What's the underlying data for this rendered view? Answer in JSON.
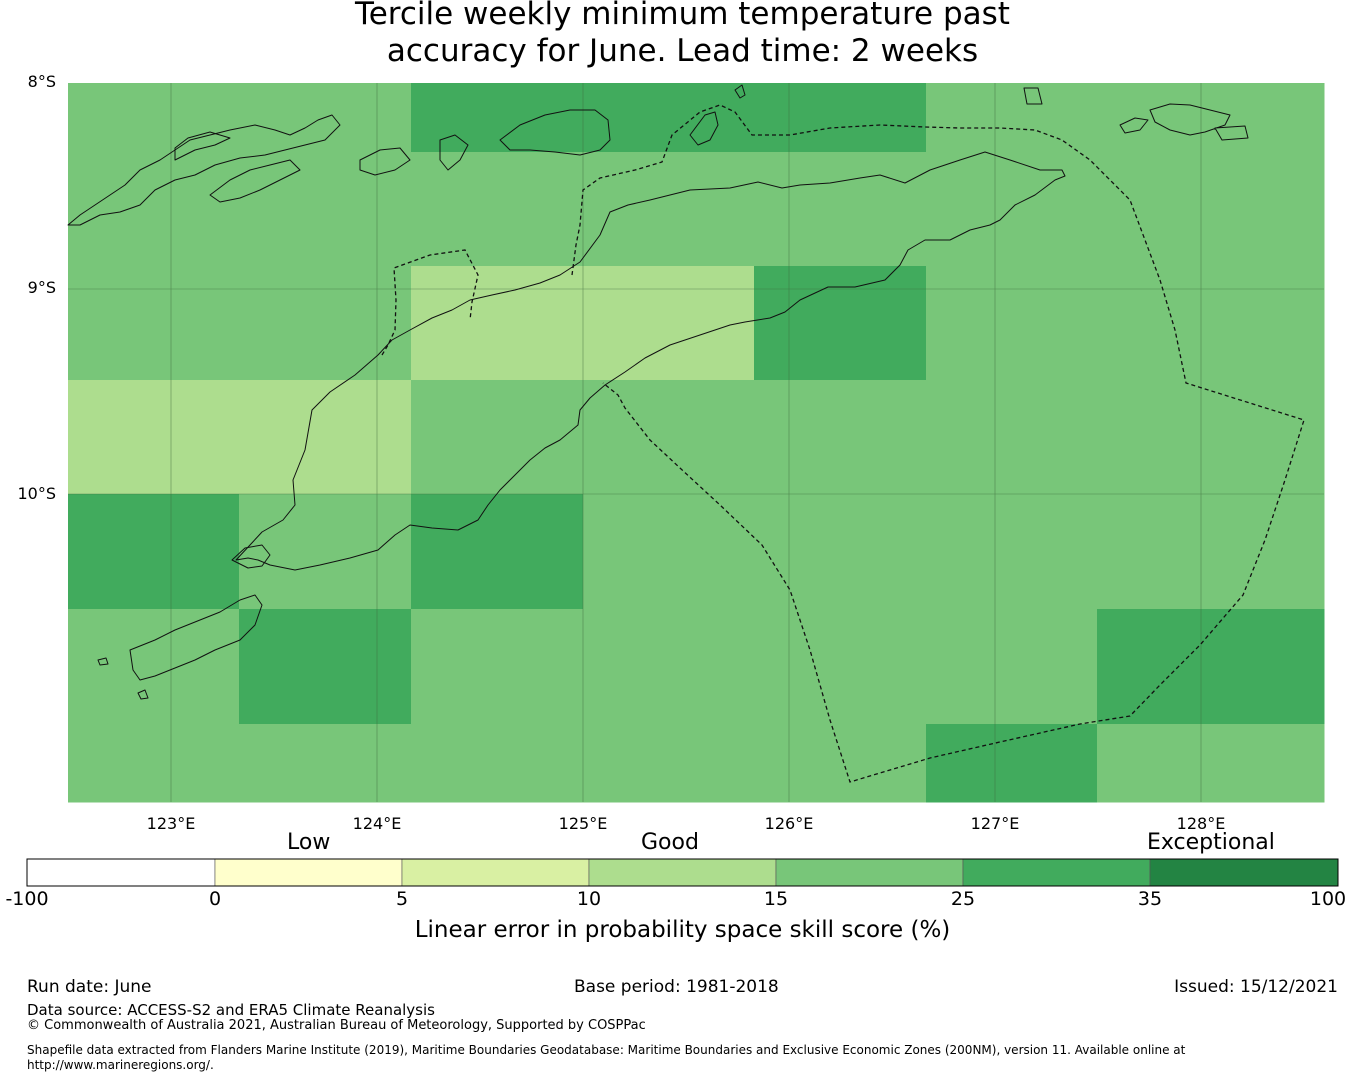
{
  "title_line1": "Tercile weekly minimum temperature past",
  "title_line2": "accuracy for June. Lead time: 2 weeks",
  "map": {
    "lon_labels": [
      "123°E",
      "124°E",
      "125°E",
      "126°E",
      "127°E",
      "128°E"
    ],
    "lat_labels": [
      "8°S",
      "9°S",
      "10°S"
    ],
    "grid_columns_skill_category": [
      [
        "15-25",
        "15-25",
        "15-25",
        "10-15",
        "25-35",
        "15-25",
        "15-25"
      ],
      [
        "15-25",
        "15-25",
        "15-25",
        "10-15",
        "15-25",
        "25-35",
        "15-25"
      ],
      [
        "25-35",
        "15-25",
        "10-15",
        "15-25",
        "25-35",
        "15-25",
        "15-25"
      ],
      [
        "25-35",
        "15-25",
        "10-15",
        "15-25",
        "15-25",
        "15-25",
        "15-25"
      ],
      [
        "25-35",
        "15-25",
        "25-35",
        "15-25",
        "15-25",
        "15-25",
        "15-25"
      ],
      [
        "15-25",
        "15-25",
        "15-25",
        "15-25",
        "15-25",
        "15-25",
        "25-35"
      ],
      [
        "15-25",
        "15-25",
        "15-25",
        "15-25",
        "15-25",
        "25-35",
        "15-25"
      ]
    ]
  },
  "colorbar": {
    "category_labels": [
      "Low",
      "Good",
      "Exceptional"
    ],
    "ticks": [
      "-100",
      "0",
      "5",
      "10",
      "15",
      "25",
      "35",
      "100"
    ],
    "colors": [
      "#ffffff",
      "#ffffcc",
      "#d9f0a3",
      "#addd8e",
      "#78c679",
      "#41ab5d",
      "#238443"
    ],
    "title": "Linear error in probability space skill score (%)"
  },
  "footer": {
    "run_date": "Run date: June",
    "base_period": "Base period: 1981-2018",
    "issued": "Issued: 15/12/2021",
    "data_source": "Data source: ACCESS-S2 and ERA5 Climate Reanalysis",
    "copyright": "© Commonwealth of Australia 2021, Australian Bureau of Meteorology, Supported by COSPPac",
    "shapefile_line1": "Shapefile data extracted from Flanders Marine Institute (2019), Maritime Boundaries Geodatabase: Maritime Boundaries and Exclusive Economic Zones (200NM), version 11. Available online at",
    "shapefile_line2": "http://www.marineregions.org/."
  }
}
